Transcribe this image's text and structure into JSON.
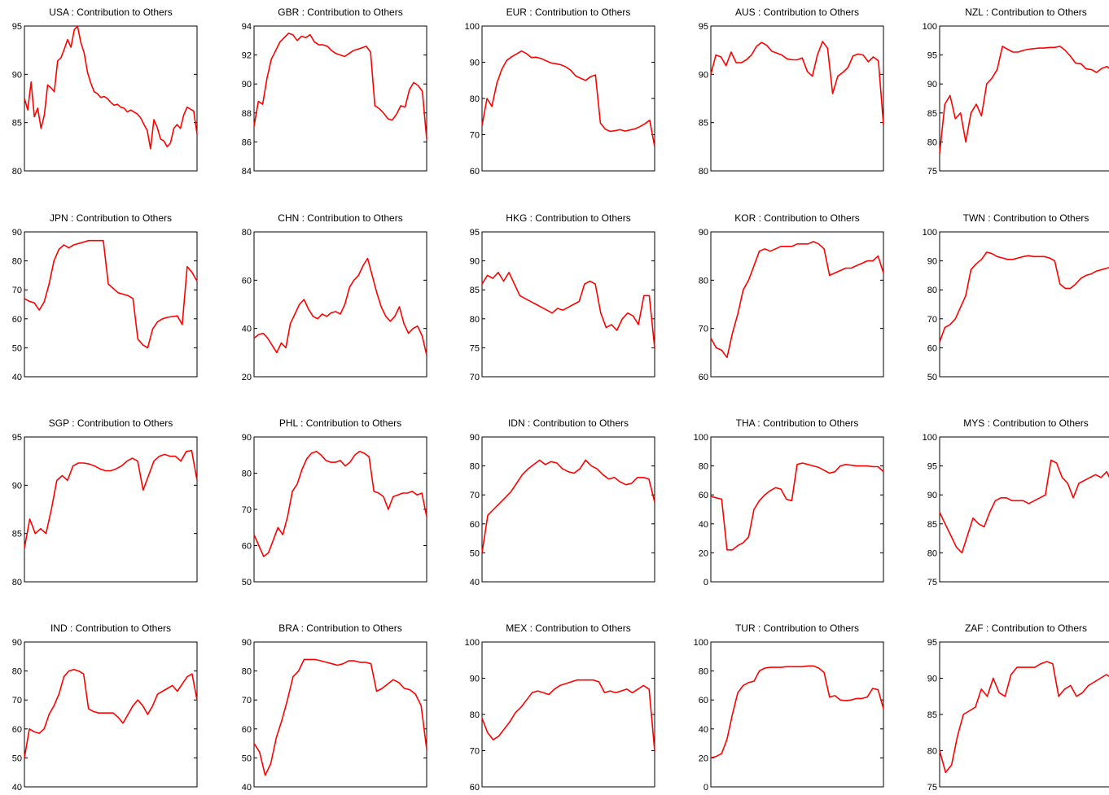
{
  "figure": {
    "line_color": "#ff0000",
    "axis_color": "#000000",
    "background": "#ffffff"
  },
  "chart_data": [
    {
      "type": "line",
      "title": "USA :  Contribution to Others",
      "ylim": [
        80,
        95
      ],
      "yticks": [
        "80",
        "85",
        "90",
        "95"
      ],
      "series": [
        {
          "values": [
            87.5,
            86.3,
            89.2,
            85.6,
            86.5,
            84.4,
            85.8,
            88.9,
            88.6,
            88.2,
            91.4,
            91.7,
            92.6,
            93.6,
            92.8,
            94.6,
            95.0,
            93.3,
            92.2,
            90.2,
            89.1,
            88.2,
            88.0,
            87.6,
            87.7,
            87.5,
            87.1,
            86.8,
            86.9,
            86.6,
            86.5,
            86.1,
            86.3,
            86.1,
            85.9,
            85.5,
            84.8,
            84.2,
            82.3,
            85.3,
            84.5,
            83.3,
            83.1,
            82.5,
            82.9,
            84.4,
            84.8,
            84.4,
            85.8,
            86.6,
            86.4,
            86.2,
            83.8
          ]
        }
      ]
    },
    {
      "type": "line",
      "title": "GBR :  Contribution to Others",
      "ylim": [
        84,
        94
      ],
      "yticks": [
        "84",
        "86",
        "88",
        "90",
        "92",
        "94"
      ],
      "series": [
        {
          "values": [
            87.1,
            88.8,
            88.6,
            90.4,
            91.7,
            92.3,
            92.9,
            93.2,
            93.5,
            93.4,
            93.0,
            93.3,
            93.2,
            93.4,
            92.9,
            92.7,
            92.7,
            92.6,
            92.3,
            92.1,
            92.0,
            91.9,
            92.1,
            92.3,
            92.4,
            92.5,
            92.6,
            92.2,
            88.5,
            88.3,
            88.0,
            87.6,
            87.5,
            87.9,
            88.5,
            88.4,
            89.6,
            90.1,
            89.9,
            89.5,
            86.2
          ]
        }
      ]
    },
    {
      "type": "line",
      "title": "EUR :  Contribution to Others",
      "ylim": [
        60,
        100
      ],
      "yticks": [
        "60",
        "70",
        "80",
        "90",
        "100"
      ],
      "series": [
        {
          "values": [
            72.5,
            80.0,
            77.8,
            84.2,
            88.0,
            90.5,
            91.5,
            92.3,
            93.1,
            92.4,
            91.3,
            91.4,
            91.0,
            90.4,
            89.8,
            89.6,
            89.3,
            88.7,
            87.8,
            86.2,
            85.6,
            85.0,
            86.0,
            86.5,
            73.2,
            71.5,
            70.9,
            71.1,
            71.4,
            71.0,
            71.3,
            71.6,
            72.2,
            73.0,
            74.0,
            66.7
          ]
        }
      ]
    },
    {
      "type": "line",
      "title": "AUS :  Contribution to Others",
      "ylim": [
        80,
        95
      ],
      "yticks": [
        "80",
        "85",
        "90",
        "95"
      ],
      "series": [
        {
          "values": [
            90.0,
            92.0,
            91.8,
            90.9,
            92.3,
            91.2,
            91.2,
            91.5,
            92.0,
            92.9,
            93.3,
            93.0,
            92.4,
            92.2,
            92.0,
            91.6,
            91.5,
            91.5,
            91.7,
            90.3,
            89.8,
            92.0,
            93.4,
            92.7,
            88.0,
            89.8,
            90.2,
            90.7,
            91.9,
            92.1,
            92.0,
            91.3,
            91.8,
            91.4,
            84.8
          ]
        }
      ]
    },
    {
      "type": "line",
      "title": "NZL :  Contribution to Others",
      "ylim": [
        75,
        100
      ],
      "yticks": [
        "75",
        "80",
        "85",
        "90",
        "95",
        "100"
      ],
      "series": [
        {
          "values": [
            78.0,
            86.5,
            88.0,
            84.0,
            85.0,
            80.0,
            85.0,
            86.5,
            84.5,
            90.0,
            91.0,
            92.5,
            96.5,
            96.0,
            95.5,
            95.5,
            95.8,
            96.0,
            96.1,
            96.2,
            96.2,
            96.3,
            96.3,
            96.5,
            95.8,
            94.8,
            93.6,
            93.5,
            92.6,
            92.5,
            92.0,
            92.7,
            93.0,
            92.3
          ]
        }
      ]
    },
    {
      "type": "line",
      "title": "JPN :  Contribution to Others",
      "ylim": [
        40,
        90
      ],
      "yticks": [
        "40",
        "50",
        "60",
        "70",
        "80",
        "90"
      ],
      "series": [
        {
          "values": [
            67.0,
            66.0,
            65.5,
            63.0,
            65.8,
            72.0,
            80.0,
            84.0,
            85.5,
            84.5,
            85.5,
            86.0,
            86.5,
            87.0,
            87.0,
            87.0,
            87.0,
            72.0,
            70.5,
            69.0,
            68.5,
            68.0,
            67.0,
            53.0,
            51.0,
            50.0,
            56.5,
            59.0,
            60.0,
            60.5,
            60.8,
            61.0,
            58.0,
            78.0,
            76.0,
            73.0
          ]
        }
      ]
    },
    {
      "type": "line",
      "title": "CHN :  Contribution to Others",
      "ylim": [
        20,
        80
      ],
      "yticks": [
        "20",
        "40",
        "60",
        "80"
      ],
      "series": [
        {
          "values": [
            36.0,
            37.5,
            38.0,
            36.0,
            33.0,
            30.0,
            34.0,
            32.0,
            42.0,
            46.0,
            50.0,
            52.0,
            48.0,
            45.0,
            44.0,
            46.0,
            45.0,
            46.5,
            47.0,
            46.0,
            50.0,
            57.0,
            60.0,
            62.0,
            66.0,
            69.0,
            62.0,
            55.0,
            49.0,
            45.0,
            43.0,
            45.0,
            49.0,
            42.0,
            38.0,
            40.0,
            41.0,
            37.0,
            29.0
          ]
        }
      ]
    },
    {
      "type": "line",
      "title": "HKG :  Contribution to Others",
      "ylim": [
        70,
        95
      ],
      "yticks": [
        "70",
        "75",
        "80",
        "85",
        "90",
        "95"
      ],
      "series": [
        {
          "values": [
            86.0,
            87.5,
            87.0,
            88.0,
            86.5,
            88.0,
            86.0,
            84.0,
            83.5,
            83.0,
            82.5,
            82.0,
            81.5,
            81.0,
            81.8,
            81.5,
            82.0,
            82.5,
            83.0,
            86.0,
            86.5,
            86.0,
            81.0,
            78.5,
            79.0,
            78.0,
            80.0,
            81.0,
            80.5,
            79.0,
            84.0,
            84.0,
            75.0
          ]
        }
      ]
    },
    {
      "type": "line",
      "title": "KOR :  Contribution to Others",
      "ylim": [
        60,
        90
      ],
      "yticks": [
        "60",
        "70",
        "80",
        "90"
      ],
      "series": [
        {
          "values": [
            68.0,
            66.0,
            65.5,
            64.0,
            69.0,
            73.0,
            78.0,
            80.0,
            83.0,
            86.0,
            86.5,
            86.0,
            86.5,
            87.0,
            87.0,
            87.0,
            87.5,
            87.5,
            87.5,
            88.0,
            87.5,
            86.5,
            81.0,
            81.5,
            82.0,
            82.5,
            82.5,
            83.0,
            83.5,
            84.0,
            84.0,
            85.0,
            81.5
          ]
        }
      ]
    },
    {
      "type": "line",
      "title": "TWN :  Contribution to Others",
      "ylim": [
        50,
        100
      ],
      "yticks": [
        "50",
        "60",
        "70",
        "80",
        "90",
        "100"
      ],
      "series": [
        {
          "values": [
            62.0,
            67.0,
            68.0,
            70.0,
            74.0,
            78.0,
            87.0,
            89.0,
            90.5,
            93.0,
            92.5,
            91.5,
            91.0,
            90.5,
            90.5,
            91.0,
            91.5,
            91.8,
            91.5,
            91.5,
            91.5,
            91.0,
            90.0,
            82.0,
            80.5,
            80.5,
            82.0,
            84.0,
            85.0,
            85.5,
            86.5,
            87.0,
            87.5,
            88.0
          ]
        }
      ]
    },
    {
      "type": "line",
      "title": "SGP :  Contribution to Others",
      "ylim": [
        80,
        95
      ],
      "yticks": [
        "80",
        "85",
        "90",
        "95"
      ],
      "series": [
        {
          "values": [
            83.5,
            86.5,
            85.0,
            85.5,
            85.0,
            87.5,
            90.5,
            91.0,
            90.5,
            92.0,
            92.3,
            92.3,
            92.2,
            92.0,
            91.7,
            91.5,
            91.5,
            91.7,
            92.0,
            92.5,
            92.8,
            92.5,
            89.5,
            91.0,
            92.5,
            93.0,
            93.2,
            93.0,
            93.0,
            92.5,
            93.5,
            93.6,
            90.5
          ]
        }
      ]
    },
    {
      "type": "line",
      "title": "PHL :  Contribution to Others",
      "ylim": [
        50,
        90
      ],
      "yticks": [
        "50",
        "60",
        "70",
        "80",
        "90"
      ],
      "series": [
        {
          "values": [
            63.0,
            60.0,
            57.0,
            58.0,
            61.5,
            65.0,
            63.0,
            68.0,
            75.0,
            77.0,
            81.0,
            84.0,
            85.5,
            86.0,
            85.0,
            83.5,
            83.0,
            83.0,
            83.5,
            82.0,
            83.0,
            85.0,
            86.0,
            85.5,
            84.5,
            75.0,
            74.5,
            73.5,
            70.0,
            73.5,
            74.0,
            74.5,
            74.5,
            75.0,
            74.0,
            74.5,
            68.0
          ]
        }
      ]
    },
    {
      "type": "line",
      "title": "IDN :  Contribution to Others",
      "ylim": [
        40,
        90
      ],
      "yticks": [
        "40",
        "50",
        "60",
        "70",
        "80",
        "90"
      ],
      "series": [
        {
          "values": [
            50.0,
            63.0,
            65.0,
            67.0,
            69.0,
            71.0,
            74.0,
            77.0,
            79.0,
            80.5,
            82.0,
            80.5,
            81.5,
            81.0,
            79.0,
            78.0,
            77.5,
            79.0,
            82.0,
            80.0,
            79.0,
            77.0,
            75.5,
            76.0,
            74.5,
            73.5,
            74.0,
            76.0,
            76.0,
            75.5,
            67.5
          ]
        }
      ]
    },
    {
      "type": "line",
      "title": "THA :  Contribution to Others",
      "ylim": [
        0,
        100
      ],
      "yticks": [
        "0",
        "20",
        "40",
        "60",
        "80",
        "100"
      ],
      "series": [
        {
          "values": [
            59.0,
            58.0,
            57.0,
            22.0,
            22.0,
            25.0,
            27.0,
            31.0,
            50.0,
            56.0,
            60.0,
            63.0,
            65.0,
            64.0,
            57.0,
            56.0,
            81.0,
            82.0,
            81.0,
            80.0,
            79.0,
            77.0,
            75.0,
            76.0,
            80.0,
            81.0,
            80.5,
            80.0,
            80.0,
            80.0,
            79.5,
            79.5,
            76.0
          ]
        }
      ]
    },
    {
      "type": "line",
      "title": "MYS :  Contribution to Others",
      "ylim": [
        75,
        100
      ],
      "yticks": [
        "75",
        "80",
        "85",
        "90",
        "95",
        "100"
      ],
      "series": [
        {
          "values": [
            87.0,
            85.0,
            83.0,
            81.0,
            80.0,
            83.0,
            86.0,
            85.0,
            84.5,
            87.0,
            89.0,
            89.5,
            89.5,
            89.0,
            89.0,
            89.0,
            88.5,
            89.0,
            89.5,
            90.0,
            96.0,
            95.5,
            93.0,
            92.0,
            89.5,
            92.0,
            92.5,
            93.0,
            93.5,
            93.0,
            94.0,
            92.0
          ]
        }
      ]
    },
    {
      "type": "line",
      "title": "IND :  Contribution to Others",
      "ylim": [
        40,
        90
      ],
      "yticks": [
        "40",
        "50",
        "60",
        "70",
        "80",
        "90"
      ],
      "series": [
        {
          "values": [
            50.0,
            60.0,
            59.0,
            58.5,
            60.0,
            65.0,
            68.0,
            72.0,
            78.0,
            80.0,
            80.5,
            80.0,
            79.0,
            67.0,
            66.0,
            65.5,
            65.5,
            65.5,
            65.5,
            64.0,
            62.0,
            65.0,
            68.0,
            70.0,
            68.0,
            65.0,
            68.0,
            72.0,
            73.0,
            74.0,
            75.0,
            73.0,
            75.5,
            78.0,
            79.0,
            70.0
          ]
        }
      ]
    },
    {
      "type": "line",
      "title": "BRA :  Contribution to Others",
      "ylim": [
        40,
        90
      ],
      "yticks": [
        "40",
        "50",
        "60",
        "70",
        "80",
        "90"
      ],
      "series": [
        {
          "values": [
            55.0,
            52.0,
            44.0,
            48.0,
            57.0,
            63.0,
            70.0,
            78.0,
            80.0,
            84.0,
            84.0,
            84.0,
            83.5,
            83.0,
            82.5,
            82.0,
            82.5,
            83.5,
            83.5,
            83.0,
            83.0,
            82.5,
            73.0,
            74.0,
            75.5,
            77.0,
            76.0,
            74.0,
            73.5,
            72.0,
            68.0,
            53.0
          ]
        }
      ]
    },
    {
      "type": "line",
      "title": "MEX :  Contribution to Others",
      "ylim": [
        60,
        100
      ],
      "yticks": [
        "60",
        "70",
        "80",
        "90",
        "100"
      ],
      "series": [
        {
          "values": [
            79.0,
            75.0,
            73.0,
            74.0,
            76.0,
            78.0,
            80.5,
            82.0,
            84.0,
            86.0,
            86.5,
            86.0,
            85.5,
            87.0,
            88.0,
            88.5,
            89.0,
            89.5,
            89.5,
            89.5,
            89.5,
            89.0,
            86.0,
            86.5,
            86.0,
            86.5,
            87.0,
            86.0,
            87.0,
            88.0,
            87.0,
            70.0
          ]
        }
      ]
    },
    {
      "type": "line",
      "title": "TUR :  Contribution to Others",
      "ylim": [
        0,
        100
      ],
      "yticks": [
        "0",
        "20",
        "40",
        "60",
        "80",
        "100"
      ],
      "series": [
        {
          "values": [
            20.0,
            21.0,
            23.0,
            33.0,
            50.0,
            65.0,
            70.0,
            72.0,
            73.0,
            80.0,
            82.0,
            82.5,
            82.5,
            82.5,
            83.0,
            83.0,
            83.0,
            83.0,
            83.5,
            83.5,
            82.0,
            79.0,
            62.0,
            63.0,
            60.0,
            59.5,
            60.0,
            61.0,
            61.0,
            62.0,
            68.0,
            67.0,
            54.0
          ]
        }
      ]
    },
    {
      "type": "line",
      "title": "ZAF :  Contribution to Others",
      "ylim": [
        75,
        95
      ],
      "yticks": [
        "75",
        "80",
        "85",
        "90",
        "95"
      ],
      "series": [
        {
          "values": [
            80.0,
            77.0,
            78.0,
            82.0,
            85.0,
            85.5,
            86.0,
            88.5,
            87.5,
            90.0,
            88.0,
            87.5,
            90.5,
            91.5,
            91.5,
            91.5,
            91.5,
            92.0,
            92.3,
            92.0,
            87.5,
            88.5,
            89.0,
            87.5,
            88.0,
            89.0,
            89.5,
            90.0,
            90.5,
            90.0
          ]
        }
      ]
    }
  ]
}
